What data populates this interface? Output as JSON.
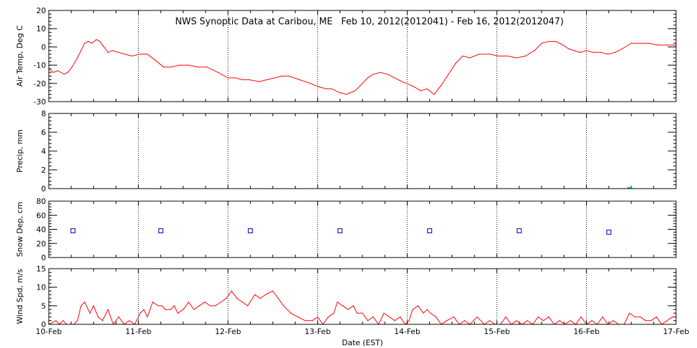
{
  "chart_data": {
    "title": "NWS Synoptic Data at Caribou, ME   Feb 10, 2012(2012041) - Feb 16, 2012(2012047)",
    "xlabel": "Date (EST)",
    "x_ticks": [
      "10-Feb",
      "11-Feb",
      "12-Feb",
      "13-Feb",
      "14-Feb",
      "15-Feb",
      "16-Feb",
      "17-Feb"
    ],
    "xlim_days": [
      0,
      7
    ],
    "grid": "dotted vertical at day boundaries",
    "panels": [
      {
        "id": "air-temp",
        "type": "line",
        "ylabel": "Air Temp, Deg C",
        "ylim": [
          -30,
          20
        ],
        "yticks": [
          -30,
          -20,
          -10,
          0,
          10,
          20
        ],
        "color": "#ff0000",
        "series": [
          {
            "x": [
              0.0,
              0.05,
              0.1,
              0.17,
              0.21,
              0.26,
              0.32,
              0.4,
              0.44,
              0.48,
              0.53,
              0.57,
              0.6,
              0.66,
              0.71,
              0.78,
              0.85,
              0.93,
              1.01,
              1.1,
              1.18,
              1.28,
              1.37,
              1.46,
              1.56,
              1.66,
              1.76,
              1.89,
              2.0,
              2.08,
              2.16,
              2.24,
              2.35,
              2.43,
              2.52,
              2.6,
              2.68,
              2.8,
              2.92,
              3.02,
              3.1,
              3.16,
              3.24,
              3.32,
              3.42,
              3.5,
              3.56,
              3.62,
              3.7,
              3.78,
              3.86,
              3.94,
              4.04,
              4.08,
              4.15,
              4.22,
              4.3,
              4.38,
              4.46,
              4.54,
              4.62,
              4.7,
              4.8,
              4.92,
              5.02,
              5.12,
              5.22,
              5.32,
              5.42,
              5.5,
              5.58,
              5.66,
              5.74,
              5.8,
              5.86,
              5.93,
              6.0,
              6.08,
              6.16,
              6.24,
              6.32,
              6.4,
              6.5,
              6.6,
              6.7,
              6.8,
              6.9,
              7.0
            ],
            "y": [
              -12,
              -14,
              -13,
              -15,
              -14,
              -11,
              -6,
              2,
              3,
              2,
              4,
              3,
              1,
              -3,
              -2,
              -3,
              -4,
              -5,
              -4,
              -4,
              -7,
              -11,
              -11,
              -10,
              -10,
              -11,
              -11,
              -14,
              -17,
              -17,
              -18,
              -18,
              -19,
              -18,
              -17,
              -16,
              -16,
              -18,
              -20,
              -22,
              -23,
              -23,
              -25,
              -26,
              -24,
              -20,
              -17,
              -15,
              -14,
              -15,
              -17,
              -19,
              -21,
              -22,
              -24,
              -23,
              -26,
              -21,
              -15,
              -9,
              -5,
              -6,
              -4,
              -4,
              -5,
              -5,
              -6,
              -5,
              -2,
              2,
              3,
              3,
              1,
              -1,
              -2,
              -3,
              -2,
              -3,
              -3,
              -4,
              -3,
              -1,
              2,
              2,
              2,
              1,
              1,
              1
            ]
          }
        ]
      },
      {
        "id": "precip",
        "type": "bar",
        "ylabel": "Precip, mm",
        "ylim": [
          0,
          8
        ],
        "yticks": [
          0,
          2,
          4,
          6,
          8
        ],
        "color": "#00c8c8",
        "series": [
          {
            "x": [
              6.48
            ],
            "y": [
              0.1
            ]
          }
        ]
      },
      {
        "id": "snow-depth",
        "type": "scatter",
        "ylabel": "Snow Dep, cm",
        "ylim": [
          0,
          80
        ],
        "yticks": [
          0,
          20,
          40,
          60,
          80
        ],
        "color": "#1e1ec8",
        "series": [
          {
            "x": [
              0.27,
              1.25,
              2.25,
              3.25,
              4.25,
              5.25,
              6.25
            ],
            "y": [
              38,
              38,
              38,
              38,
              38,
              38,
              36
            ]
          }
        ]
      },
      {
        "id": "wind-speed",
        "type": "line",
        "ylabel": "Wind Spd, m/s",
        "ylim": [
          0,
          15
        ],
        "yticks": [
          0,
          5,
          10,
          15
        ],
        "color": "#ff0000",
        "series": [
          {
            "x": [
              0.0,
              0.08,
              0.12,
              0.16,
              0.2,
              0.24,
              0.28,
              0.32,
              0.36,
              0.4,
              0.46,
              0.5,
              0.55,
              0.6,
              0.66,
              0.72,
              0.78,
              0.84,
              0.9,
              0.96,
              1.02,
              1.06,
              1.1,
              1.16,
              1.22,
              1.26,
              1.3,
              1.36,
              1.4,
              1.44,
              1.5,
              1.56,
              1.62,
              1.68,
              1.74,
              1.8,
              1.86,
              1.92,
              1.98,
              2.04,
              2.1,
              2.16,
              2.22,
              2.3,
              2.36,
              2.42,
              2.5,
              2.56,
              2.62,
              2.7,
              2.78,
              2.86,
              2.94,
              3.0,
              3.06,
              3.12,
              3.18,
              3.22,
              3.28,
              3.34,
              3.4,
              3.44,
              3.5,
              3.56,
              3.62,
              3.68,
              3.74,
              3.8,
              3.86,
              3.92,
              3.98,
              4.02,
              4.06,
              4.12,
              4.18,
              4.22,
              4.26,
              4.32,
              4.38,
              4.44,
              4.52,
              4.58,
              4.64,
              4.7,
              4.78,
              4.86,
              4.92,
              4.98,
              5.04,
              5.1,
              5.16,
              5.22,
              5.28,
              5.34,
              5.4,
              5.46,
              5.52,
              5.58,
              5.64,
              5.7,
              5.76,
              5.82,
              5.88,
              5.94,
              6.0,
              6.06,
              6.12,
              6.18,
              6.24,
              6.3,
              6.36,
              6.42,
              6.48,
              6.54,
              6.6,
              6.66,
              6.72,
              6.78,
              6.84,
              6.9,
              6.96,
              7.0
            ],
            "y": [
              0,
              1,
              0,
              1,
              0,
              0,
              0,
              1,
              5,
              6,
              3,
              5,
              2,
              1,
              4,
              0,
              2,
              0,
              1,
              0,
              3,
              4,
              2,
              6,
              5,
              5,
              4,
              4,
              5,
              3,
              4,
              6,
              4,
              5,
              6,
              5,
              5,
              6,
              7,
              9,
              7,
              6,
              5,
              8,
              7,
              8,
              9,
              7,
              5,
              3,
              2,
              1,
              1,
              2,
              0,
              2,
              3,
              6,
              5,
              4,
              5,
              3,
              3,
              1,
              2,
              0,
              3,
              2,
              1,
              2,
              0,
              1,
              4,
              5,
              3,
              4,
              3,
              2,
              0,
              1,
              2,
              0,
              1,
              0,
              2,
              0,
              1,
              0,
              0,
              2,
              0,
              1,
              0,
              1,
              0,
              2,
              1,
              2,
              0,
              1,
              0,
              1,
              0,
              2,
              0,
              1,
              0,
              2,
              0,
              1,
              0,
              0,
              3,
              2,
              2,
              1,
              1,
              2,
              0,
              1,
              2,
              2
            ]
          }
        ]
      }
    ]
  }
}
